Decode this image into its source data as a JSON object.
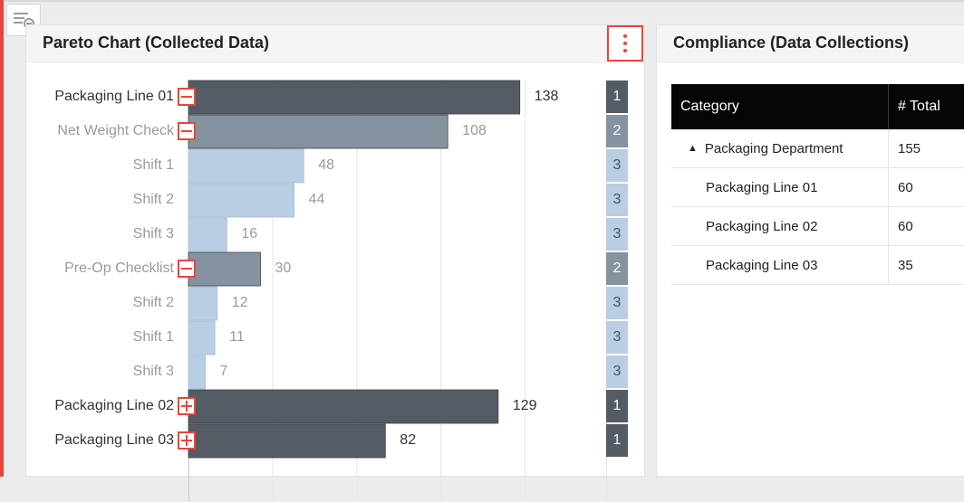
{
  "colors": {
    "accent": "#e8463a",
    "level1": "#545b64",
    "level2": "#8592a0",
    "level3": "#b9cde3"
  },
  "pareto": {
    "title": "Pareto Chart (Collected Data)",
    "menu_icon": "vertical-dots-icon",
    "rows": [
      {
        "label": "Packaging Line 01",
        "value": 138,
        "level": 1,
        "toggle": "collapse",
        "dim": false
      },
      {
        "label": "Net Weight Check",
        "value": 108,
        "level": 2,
        "toggle": "collapse",
        "dim": true
      },
      {
        "label": "Shift 1",
        "value": 48,
        "level": 3,
        "toggle": "none",
        "dim": true
      },
      {
        "label": "Shift 2",
        "value": 44,
        "level": 3,
        "toggle": "none",
        "dim": true
      },
      {
        "label": "Shift 3",
        "value": 16,
        "level": 3,
        "toggle": "none",
        "dim": true
      },
      {
        "label": "Pre-Op Checklist",
        "value": 30,
        "level": 2,
        "toggle": "collapse",
        "dim": true
      },
      {
        "label": "Shift 2",
        "value": 12,
        "level": 3,
        "toggle": "none",
        "dim": true
      },
      {
        "label": "Shift 1",
        "value": 11,
        "level": 3,
        "toggle": "none",
        "dim": true
      },
      {
        "label": "Shift 3",
        "value": 7,
        "level": 3,
        "toggle": "none",
        "dim": true
      },
      {
        "label": "Packaging Line 02",
        "value": 129,
        "level": 1,
        "toggle": "expand",
        "dim": false
      },
      {
        "label": "Packaging Line 03",
        "value": 82,
        "level": 1,
        "toggle": "expand",
        "dim": false
      }
    ]
  },
  "compliance": {
    "title": "Compliance (Data Collections)",
    "columns": [
      "Category",
      "# Total"
    ],
    "rows": [
      {
        "category": "Packaging Department",
        "total": "155",
        "group": true,
        "arrow": "▲"
      },
      {
        "category": "Packaging Line 01",
        "total": "60",
        "group": false
      },
      {
        "category": "Packaging Line 02",
        "total": "60",
        "group": false
      },
      {
        "category": "Packaging Line 03",
        "total": "35",
        "group": false
      }
    ]
  },
  "sidebar_toggle_icon": "list-collapse-icon"
}
